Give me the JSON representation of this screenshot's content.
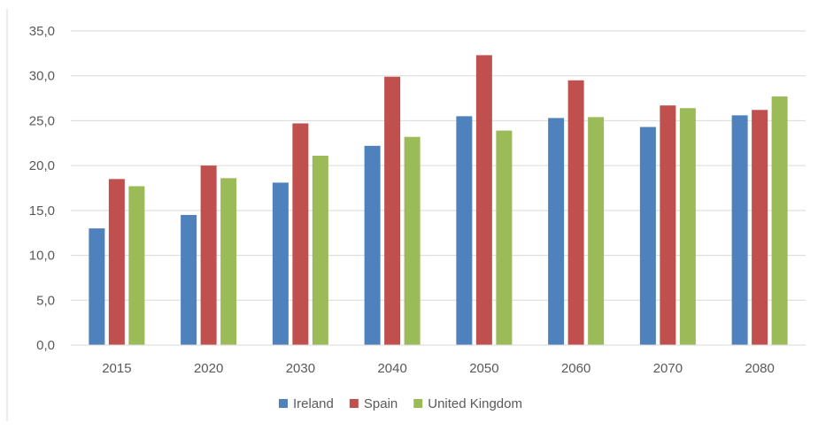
{
  "chart_data": {
    "type": "bar",
    "title": "",
    "xlabel": "",
    "ylabel": "",
    "categories": [
      "2015",
      "2020",
      "2030",
      "2040",
      "2050",
      "2060",
      "2070",
      "2080"
    ],
    "series": [
      {
        "name": "Ireland",
        "color": "#4f81bd",
        "values": [
          13.0,
          14.5,
          18.1,
          22.2,
          25.5,
          25.3,
          24.3,
          25.6
        ]
      },
      {
        "name": "Spain",
        "color": "#c0504d",
        "values": [
          18.5,
          20.0,
          24.7,
          29.9,
          32.3,
          29.5,
          26.7,
          26.2
        ]
      },
      {
        "name": "United Kingdom",
        "color": "#9bbb59",
        "values": [
          17.7,
          18.6,
          21.1,
          23.2,
          23.9,
          25.4,
          26.4,
          27.7
        ]
      }
    ],
    "ylim": [
      0,
      35
    ],
    "yticks": [
      "0,0",
      "5,0",
      "10,0",
      "15,0",
      "20,0",
      "25,0",
      "30,0",
      "35,0"
    ],
    "grid": true,
    "legend": "bottom-center"
  }
}
